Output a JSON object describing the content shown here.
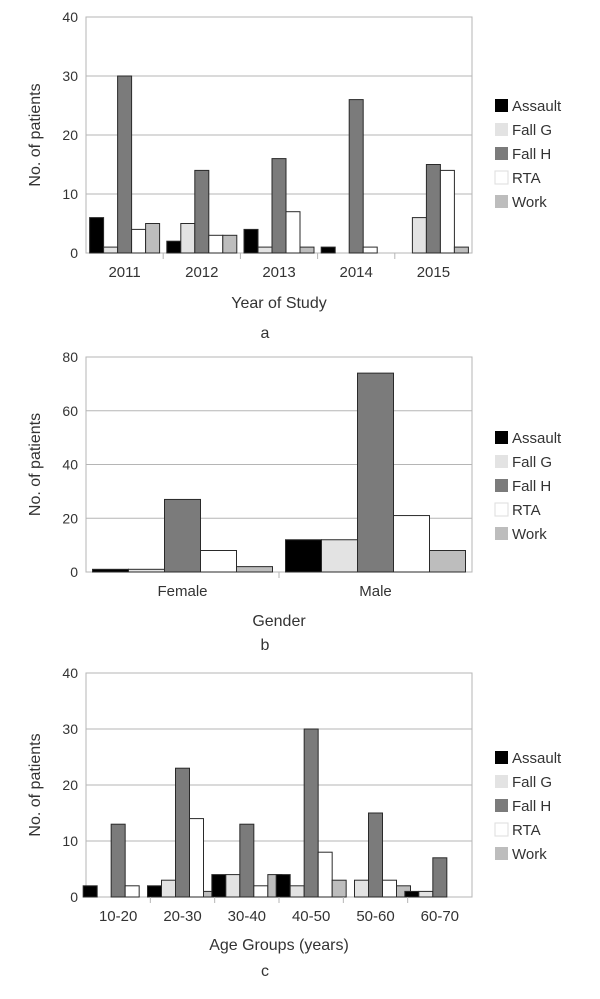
{
  "chart_data": [
    {
      "type": "bar",
      "panel_label": "a",
      "xlabel": "Year of Study",
      "ylabel": "No. of patients",
      "ylim": [
        0,
        40
      ],
      "yticks": [
        0,
        10,
        20,
        30,
        40
      ],
      "grid": true,
      "legend_placement": "right",
      "categories": [
        "2011",
        "2012",
        "2013",
        "2014",
        "2015"
      ],
      "series": [
        {
          "name": "Assault",
          "color": "#000000",
          "values": [
            6,
            2,
            4,
            1,
            0
          ]
        },
        {
          "name": "Fall G",
          "color": "#e3e3e3",
          "values": [
            1,
            5,
            1,
            0,
            6
          ]
        },
        {
          "name": "Fall H",
          "color": "#7b7b7b",
          "values": [
            30,
            14,
            16,
            26,
            15
          ]
        },
        {
          "name": "RTA",
          "color": "#ffffff",
          "values": [
            4,
            3,
            7,
            1,
            14
          ]
        },
        {
          "name": "Work",
          "color": "#bdbdbd",
          "values": [
            5,
            3,
            1,
            0,
            1
          ]
        }
      ]
    },
    {
      "type": "bar",
      "panel_label": "b",
      "xlabel": "Gender",
      "ylabel": "No. of patients",
      "ylim": [
        0,
        80
      ],
      "yticks": [
        0,
        20,
        40,
        60,
        80
      ],
      "grid": true,
      "legend_placement": "right",
      "categories": [
        "Female",
        "Male"
      ],
      "series": [
        {
          "name": "Assault",
          "color": "#000000",
          "values": [
            1,
            12
          ]
        },
        {
          "name": "Fall G",
          "color": "#e3e3e3",
          "values": [
            1,
            12
          ]
        },
        {
          "name": "Fall H",
          "color": "#7b7b7b",
          "values": [
            27,
            74
          ]
        },
        {
          "name": "RTA",
          "color": "#ffffff",
          "values": [
            8,
            21
          ]
        },
        {
          "name": "Work",
          "color": "#bdbdbd",
          "values": [
            2,
            8
          ]
        }
      ]
    },
    {
      "type": "bar",
      "panel_label": "c",
      "xlabel": "Age Groups (years)",
      "ylabel": "No. of patients",
      "ylim": [
        0,
        40
      ],
      "yticks": [
        0,
        10,
        20,
        30,
        40
      ],
      "grid": true,
      "legend_placement": "right",
      "categories": [
        "10-20",
        "20-30",
        "30-40",
        "40-50",
        "50-60",
        "60-70"
      ],
      "series": [
        {
          "name": "Assault",
          "color": "#000000",
          "values": [
            2,
            2,
            4,
            4,
            0,
            1
          ]
        },
        {
          "name": "Fall G",
          "color": "#e3e3e3",
          "values": [
            0,
            3,
            4,
            2,
            3,
            1
          ]
        },
        {
          "name": "Fall H",
          "color": "#7b7b7b",
          "values": [
            13,
            23,
            13,
            30,
            15,
            7
          ]
        },
        {
          "name": "RTA",
          "color": "#ffffff",
          "values": [
            2,
            14,
            2,
            8,
            3,
            0
          ]
        },
        {
          "name": "Work",
          "color": "#bdbdbd",
          "values": [
            0,
            1,
            4,
            3,
            2,
            0
          ]
        }
      ]
    }
  ]
}
